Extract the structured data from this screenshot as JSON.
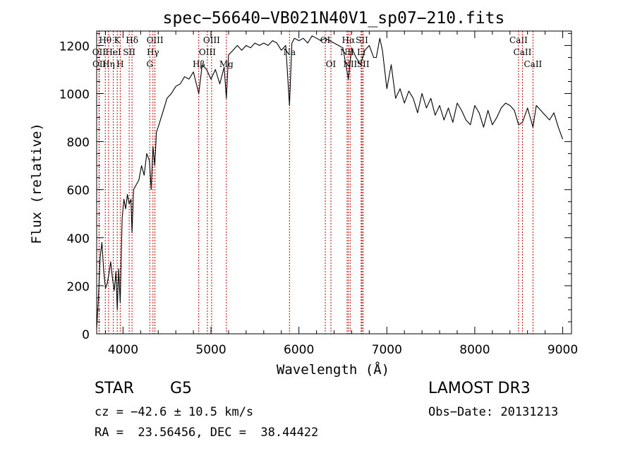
{
  "chart_data": {
    "type": "line",
    "title": "spec−56640−VB021N40V1_sp07−210.fits",
    "xlabel": "Wavelength (Å)",
    "ylabel": "Flux (relative)",
    "xlim": [
      3700,
      9100
    ],
    "ylim": [
      0,
      1260
    ],
    "xticks": [
      4000,
      5000,
      6000,
      7000,
      8000,
      9000
    ],
    "yticks": [
      0,
      200,
      400,
      600,
      800,
      1000,
      1200
    ],
    "grid": false,
    "colors": {
      "spectrum": "#000000",
      "lines": "#cc0000"
    },
    "spectrum": {
      "x": [
        3700,
        3720,
        3740,
        3760,
        3780,
        3800,
        3820,
        3840,
        3860,
        3880,
        3900,
        3920,
        3934,
        3950,
        3968,
        3990,
        4010,
        4030,
        4050,
        4070,
        4090,
        4102,
        4120,
        4150,
        4180,
        4210,
        4240,
        4270,
        4300,
        4320,
        4340,
        4360,
        4380,
        4400,
        4450,
        4500,
        4550,
        4600,
        4650,
        4700,
        4750,
        4800,
        4861,
        4900,
        4950,
        5000,
        5050,
        5100,
        5150,
        5175,
        5200,
        5250,
        5300,
        5350,
        5400,
        5450,
        5500,
        5550,
        5600,
        5650,
        5700,
        5750,
        5800,
        5850,
        5893,
        5920,
        5950,
        6000,
        6050,
        6100,
        6150,
        6200,
        6250,
        6300,
        6350,
        6400,
        6450,
        6500,
        6563,
        6600,
        6650,
        6700,
        6750,
        6800,
        6850,
        6880,
        6920,
        6950,
        7000,
        7050,
        7100,
        7150,
        7200,
        7250,
        7300,
        7350,
        7400,
        7450,
        7500,
        7550,
        7600,
        7650,
        7700,
        7750,
        7800,
        7850,
        7900,
        7950,
        8000,
        8050,
        8100,
        8150,
        8200,
        8250,
        8300,
        8350,
        8400,
        8450,
        8498,
        8542,
        8600,
        8662,
        8700,
        8750,
        8800,
        8850,
        8900,
        8950,
        9000
      ],
      "y": [
        20,
        150,
        320,
        380,
        260,
        190,
        210,
        250,
        300,
        230,
        180,
        260,
        100,
        270,
        130,
        480,
        560,
        520,
        580,
        540,
        560,
        420,
        600,
        620,
        640,
        700,
        660,
        750,
        720,
        600,
        780,
        700,
        840,
        860,
        920,
        980,
        1000,
        1030,
        1040,
        1070,
        1060,
        1090,
        1000,
        1120,
        1100,
        1060,
        1100,
        1040,
        1110,
        980,
        1160,
        1180,
        1200,
        1180,
        1200,
        1190,
        1210,
        1200,
        1210,
        1200,
        1220,
        1210,
        1180,
        1200,
        950,
        1210,
        1230,
        1220,
        1230,
        1210,
        1240,
        1230,
        1220,
        1230,
        1220,
        1210,
        1200,
        1190,
        1060,
        1190,
        1150,
        1120,
        1180,
        1200,
        1150,
        1150,
        1230,
        1180,
        1020,
        1120,
        980,
        1020,
        960,
        1010,
        980,
        920,
        1000,
        940,
        980,
        910,
        950,
        890,
        940,
        880,
        960,
        930,
        890,
        870,
        950,
        920,
        860,
        930,
        870,
        900,
        940,
        960,
        950,
        930,
        870,
        880,
        940,
        860,
        950,
        930,
        910,
        890,
        920,
        860,
        810
      ]
    },
    "line_markers": [
      {
        "label": "Hθ",
        "x": 3798,
        "row": 0
      },
      {
        "label": "K",
        "x": 3934,
        "row": 0
      },
      {
        "label": "Hδ",
        "x": 4102,
        "row": 0
      },
      {
        "label": "OIII",
        "x": 4363,
        "row": 0
      },
      {
        "label": "OIII",
        "x": 5007,
        "row": 0
      },
      {
        "label": "OI",
        "x": 6300,
        "row": 0
      },
      {
        "label": "SII",
        "x": 6717,
        "row": 0
      },
      {
        "label": "CaII",
        "x": 8498,
        "row": 0
      },
      {
        "label": "OII",
        "x": 3727,
        "row": 1
      },
      {
        "label": "HeI",
        "x": 3889,
        "row": 1
      },
      {
        "label": "SII",
        "x": 4070,
        "row": 1
      },
      {
        "label": "Hγ",
        "x": 4340,
        "row": 1
      },
      {
        "label": "OIII",
        "x": 4959,
        "row": 1
      },
      {
        "label": "Na",
        "x": 5893,
        "row": 1
      },
      {
        "label": "NII",
        "x": 6548,
        "row": 1
      },
      {
        "label": "Li",
        "x": 6708,
        "row": 1
      },
      {
        "label": "CaII",
        "x": 8542,
        "row": 1
      },
      {
        "label": "OII",
        "x": 3729,
        "row": 2
      },
      {
        "label": "Hη",
        "x": 3835,
        "row": 2
      },
      {
        "label": "H",
        "x": 3968,
        "row": 2
      },
      {
        "label": "G",
        "x": 4304,
        "row": 2
      },
      {
        "label": "Hβ",
        "x": 4861,
        "row": 2
      },
      {
        "label": "Mg",
        "x": 5175,
        "row": 2
      },
      {
        "label": "OI",
        "x": 6364,
        "row": 2
      },
      {
        "label": "NII",
        "x": 6583,
        "row": 2
      },
      {
        "label": "SII",
        "x": 6731,
        "row": 2
      },
      {
        "label": "CaII",
        "x": 8662,
        "row": 2
      },
      {
        "label": "Hα",
        "x": 6563,
        "row": 0
      }
    ]
  },
  "info": {
    "object_class": "STAR",
    "subclass": "G5",
    "cz": "cz = −42.6 ± 10.5 km/s",
    "coords": "RA =  23.56456, DEC =  38.44422",
    "survey": "LAMOST DR3",
    "obs_date": "Obs−Date: 20131213"
  }
}
